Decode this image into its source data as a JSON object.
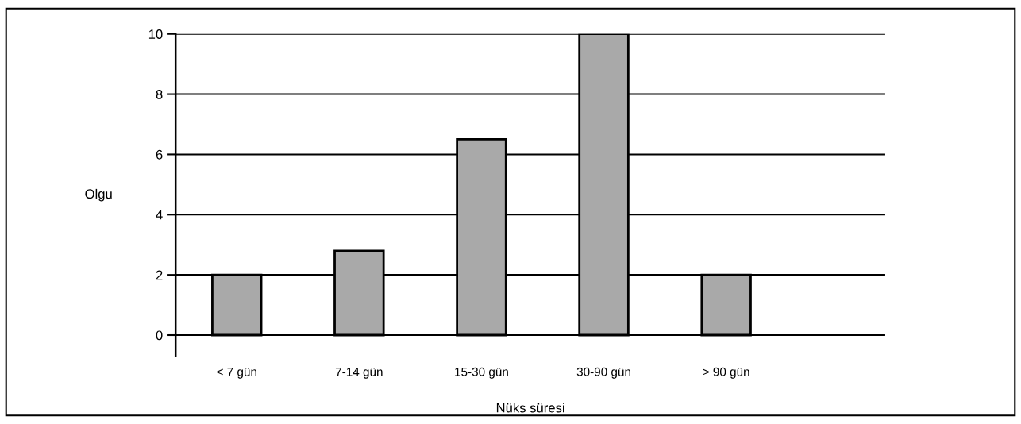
{
  "chart_data": {
    "type": "bar",
    "xlabel": "Nüks süresi",
    "ylabel": "Olgu",
    "categories": [
      "< 7 gün",
      "7-14 gün",
      "15-30 gün",
      "30-90 gün",
      "> 90 gün"
    ],
    "values": [
      2,
      2.8,
      6.5,
      10,
      2
    ],
    "color": "#a9a9a9",
    "ylim": [
      -0.7,
      10
    ],
    "yticks": [
      0,
      2,
      4,
      6,
      8,
      10
    ],
    "grid": "y",
    "legend": false
  }
}
